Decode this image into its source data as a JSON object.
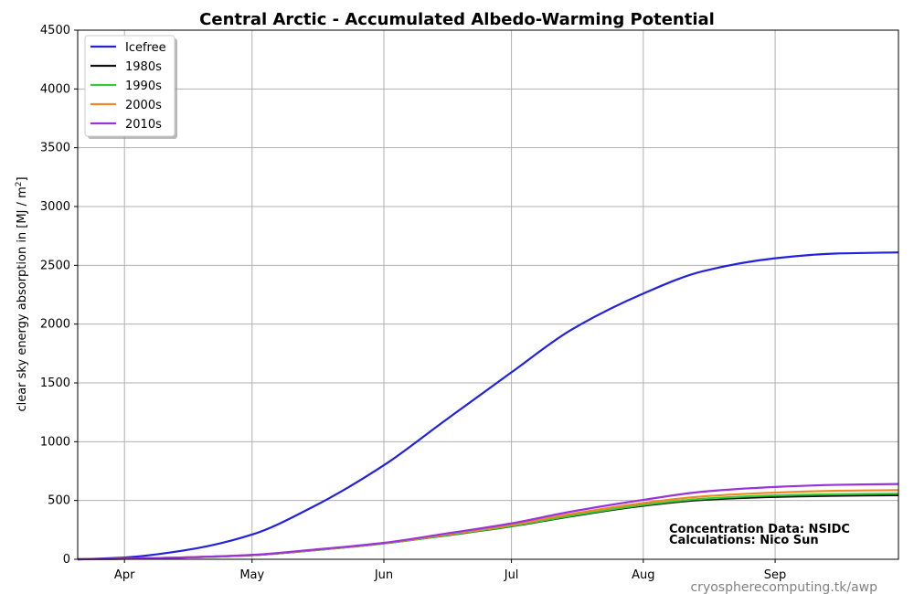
{
  "chart_data": {
    "type": "line",
    "title": "Central Arctic - Accumulated Albedo-Warming Potential",
    "xlabel": "",
    "ylabel": "clear sky energy absorption in  [MJ / m2]",
    "ylim": [
      0,
      4500
    ],
    "yticks": [
      0,
      500,
      1000,
      1500,
      2000,
      2500,
      3000,
      3500,
      4000,
      4500
    ],
    "xlim": [
      "03-21",
      "09-30"
    ],
    "xticks": [
      {
        "date": "04-01",
        "label": "Apr"
      },
      {
        "date": "05-01",
        "label": "May"
      },
      {
        "date": "06-01",
        "label": "Jun"
      },
      {
        "date": "07-01",
        "label": "Jul"
      },
      {
        "date": "08-01",
        "label": "Aug"
      },
      {
        "date": "09-01",
        "label": "Sep"
      }
    ],
    "grid": true,
    "legend_position": "top-left",
    "series": [
      {
        "name": "Icefree",
        "color": "#2222dd",
        "x": [
          "03-21",
          "04-01",
          "04-15",
          "05-01",
          "05-15",
          "06-01",
          "06-15",
          "07-01",
          "07-15",
          "08-01",
          "08-15",
          "09-01",
          "09-15",
          "09-30"
        ],
        "values": [
          0,
          15,
          75,
          210,
          440,
          800,
          1170,
          1590,
          1950,
          2260,
          2450,
          2560,
          2600,
          2610
        ]
      },
      {
        "name": "1980s",
        "color": "#111111",
        "x": [
          "03-21",
          "04-01",
          "04-15",
          "05-01",
          "05-15",
          "06-01",
          "06-15",
          "07-01",
          "07-15",
          "08-01",
          "08-15",
          "09-01",
          "09-15",
          "09-30"
        ],
        "values": [
          0,
          5,
          15,
          35,
          75,
          135,
          200,
          280,
          365,
          455,
          505,
          530,
          540,
          545
        ]
      },
      {
        "name": "1990s",
        "color": "#33cc33",
        "x": [
          "03-21",
          "04-01",
          "04-15",
          "05-01",
          "05-15",
          "06-01",
          "06-15",
          "07-01",
          "07-15",
          "08-01",
          "08-15",
          "09-01",
          "09-15",
          "09-30"
        ],
        "values": [
          0,
          5,
          15,
          35,
          75,
          135,
          202,
          283,
          370,
          462,
          515,
          543,
          553,
          558
        ]
      },
      {
        "name": "2000s",
        "color": "#ee8822",
        "x": [
          "03-21",
          "04-01",
          "04-15",
          "05-01",
          "05-15",
          "06-01",
          "06-15",
          "07-01",
          "07-15",
          "08-01",
          "08-15",
          "09-01",
          "09-15",
          "09-30"
        ],
        "values": [
          0,
          5,
          16,
          36,
          77,
          137,
          207,
          292,
          385,
          478,
          535,
          567,
          582,
          588
        ]
      },
      {
        "name": "2010s",
        "color": "#9933dd",
        "x": [
          "03-21",
          "04-01",
          "04-15",
          "05-01",
          "05-15",
          "06-01",
          "06-15",
          "07-01",
          "07-15",
          "08-01",
          "08-15",
          "09-01",
          "09-15",
          "09-30"
        ],
        "values": [
          0,
          5,
          16,
          37,
          80,
          140,
          215,
          305,
          405,
          505,
          575,
          615,
          633,
          640
        ]
      }
    ],
    "annotations": [
      "Concentration Data: NSIDC",
      "Calculations: Nico Sun"
    ]
  },
  "footer": {
    "credit": "cryospherecomputing.tk/awp"
  }
}
